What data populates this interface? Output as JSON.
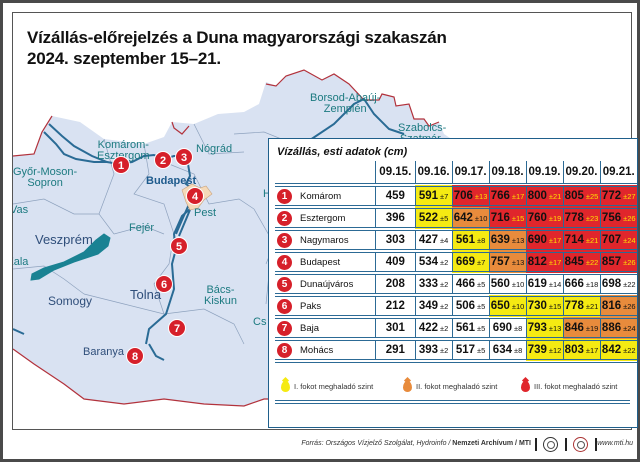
{
  "title": {
    "line1": "Vízállás-előrejelzés a Duna magyarországi szakaszán",
    "line2": "2024. szeptember 15–21."
  },
  "map": {
    "counties": [
      {
        "name": "Komárom-\nEsztergom",
        "line1": "Komárom-",
        "line2": "Esztergom"
      },
      {
        "name": "Nógrád"
      },
      {
        "name": "Borsod-Abaúj-Zemplén",
        "line1": "Borsod-Abaúj-",
        "line2": "Zemplén"
      },
      {
        "name": "Szabolcs-Szatmár-",
        "line1": "Szabolcs-",
        "line2": "Szatmár-"
      },
      {
        "name": "Győr-Moson-Sopron",
        "line1": "Győr-Moson-",
        "line2": "Sopron"
      },
      {
        "name": "Vas"
      },
      {
        "name": "Fejér"
      },
      {
        "name": "Pest"
      },
      {
        "name": "Veszprém"
      },
      {
        "name": "Zala"
      },
      {
        "name": "Somogy"
      },
      {
        "name": "Tolna"
      },
      {
        "name": "Bács-Kiskun",
        "line1": "Bács-",
        "line2": "Kiskun"
      },
      {
        "name": "Baranya"
      },
      {
        "name": "H"
      },
      {
        "name": "Cs"
      }
    ],
    "city": "Budapest",
    "markers": [
      "1",
      "2",
      "3",
      "4",
      "5",
      "6",
      "7",
      "8"
    ]
  },
  "chart_data": {
    "type": "table",
    "title": "Vízállás, esti adatok (cm)",
    "columns": [
      "09.15.",
      "09.16.",
      "09.17.",
      "09.18.",
      "09.19.",
      "09.20.",
      "09.21."
    ],
    "rows": [
      {
        "id": "1",
        "station": "Komárom",
        "values": [
          459,
          591,
          706,
          766,
          800,
          805,
          772
        ],
        "uncertainty": [
          null,
          7,
          13,
          17,
          21,
          25,
          27
        ],
        "level": [
          "none",
          "I",
          "III",
          "III",
          "III",
          "III",
          "III"
        ]
      },
      {
        "id": "2",
        "station": "Esztergom",
        "values": [
          396,
          522,
          642,
          716,
          760,
          778,
          756
        ],
        "uncertainty": [
          null,
          5,
          10,
          15,
          19,
          23,
          26
        ],
        "level": [
          "none",
          "I",
          "II",
          "III",
          "III",
          "III",
          "III"
        ]
      },
      {
        "id": "3",
        "station": "Nagymaros",
        "values": [
          303,
          427,
          561,
          639,
          690,
          714,
          707
        ],
        "uncertainty": [
          null,
          4,
          8,
          13,
          17,
          21,
          24
        ],
        "level": [
          "none",
          "none",
          "I",
          "II",
          "III",
          "III",
          "III"
        ]
      },
      {
        "id": "4",
        "station": "Budapest",
        "values": [
          409,
          534,
          669,
          757,
          812,
          845,
          857
        ],
        "uncertainty": [
          null,
          2,
          7,
          13,
          17,
          22,
          26
        ],
        "level": [
          "none",
          "none",
          "I",
          "II",
          "III",
          "III",
          "III"
        ]
      },
      {
        "id": "5",
        "station": "Dunaújváros",
        "values": [
          208,
          333,
          466,
          560,
          619,
          666,
          698
        ],
        "uncertainty": [
          null,
          2,
          5,
          10,
          14,
          18,
          22
        ],
        "level": [
          "none",
          "none",
          "none",
          "none",
          "none",
          "none",
          "none"
        ]
      },
      {
        "id": "6",
        "station": "Paks",
        "values": [
          212,
          349,
          506,
          650,
          730,
          778,
          816
        ],
        "uncertainty": [
          null,
          2,
          5,
          10,
          15,
          21,
          26
        ],
        "level": [
          "none",
          "none",
          "none",
          "I",
          "I",
          "I",
          "II"
        ]
      },
      {
        "id": "7",
        "station": "Baja",
        "values": [
          301,
          422,
          561,
          690,
          793,
          846,
          886
        ],
        "uncertainty": [
          null,
          2,
          5,
          8,
          13,
          19,
          24
        ],
        "level": [
          "none",
          "none",
          "none",
          "none",
          "I",
          "II",
          "II"
        ]
      },
      {
        "id": "8",
        "station": "Mohács",
        "values": [
          291,
          393,
          517,
          634,
          739,
          803,
          842
        ],
        "uncertainty": [
          null,
          2,
          5,
          8,
          12,
          17,
          22
        ],
        "level": [
          "none",
          "none",
          "none",
          "none",
          "I",
          "I",
          "I"
        ]
      }
    ],
    "legend": [
      {
        "level": "I",
        "label": "I. fokot meghaladó szint",
        "color": "#f5ea12"
      },
      {
        "level": "II",
        "label": "II. fokot meghaladó szint",
        "color": "#e88b3c"
      },
      {
        "level": "III",
        "label": "III. fokot meghaladó szint",
        "color": "#e0262c"
      }
    ]
  },
  "footer": {
    "source_prefix": "Forrás: Országos Vízjelző Szolgálat, Hydroinfo / ",
    "source_bold": "Nemzeti Archívum / MTI",
    "url": "www.mti.hu"
  }
}
